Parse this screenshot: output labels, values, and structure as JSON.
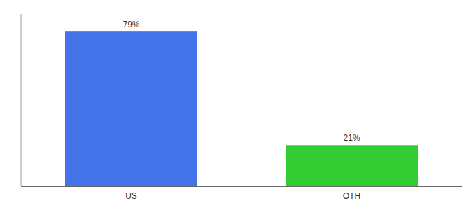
{
  "chart_data": {
    "type": "bar",
    "categories": [
      "US",
      "OTH"
    ],
    "values": [
      79,
      21
    ],
    "value_labels": [
      "79%",
      "21%"
    ],
    "colors": [
      "#4472E8",
      "#33CC33"
    ],
    "ylim": [
      0,
      88
    ],
    "data_labels": true,
    "tick_labels": "x",
    "grid": false
  }
}
